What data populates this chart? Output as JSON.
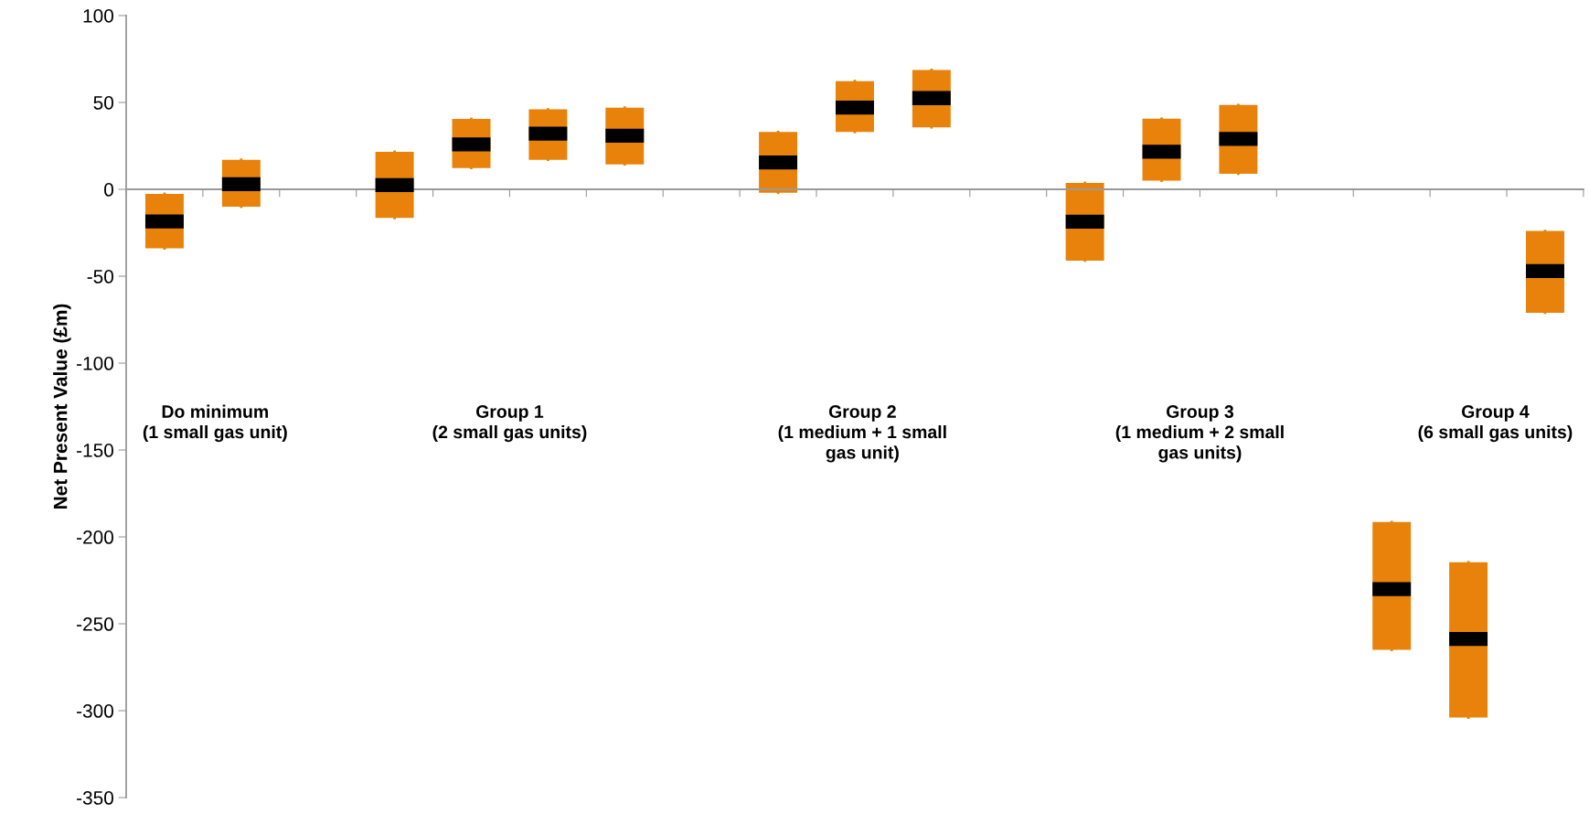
{
  "chart_data": {
    "type": "box",
    "ylabel": "Net Present Value (£m)",
    "categories": [
      null,
      null,
      null,
      null,
      null,
      null,
      null,
      null,
      null,
      null,
      null,
      null,
      null,
      null,
      null,
      null,
      null,
      null,
      null
    ],
    "series": [
      {
        "color": "#e8820a",
        "boxes": [
          {
            "low": -34,
            "q1": -34,
            "median": -18.5,
            "q3": -2.6,
            "high": -2.6
          },
          {
            "low": -10,
            "q1": -10,
            "median": 3,
            "q3": 17,
            "high": 17
          },
          null,
          {
            "low": -16.5,
            "q1": -16.5,
            "median": 2.4,
            "q3": 21.6,
            "high": 21.6
          },
          {
            "low": 12.3,
            "q1": 12.3,
            "median": 25.8,
            "q3": 40.5,
            "high": 40.5
          },
          {
            "low": 17,
            "q1": 17,
            "median": 32,
            "q3": 46,
            "high": 46
          },
          {
            "low": 14.4,
            "q1": 14.4,
            "median": 30.8,
            "q3": 47,
            "high": 47
          },
          null,
          {
            "low": -2,
            "q1": -2,
            "median": 15.5,
            "q3": 33,
            "high": 33
          },
          {
            "low": 33,
            "q1": 33,
            "median": 47,
            "q3": 62.3,
            "high": 62.3
          },
          {
            "low": 35.7,
            "q1": 35.7,
            "median": 52.5,
            "q3": 68.7,
            "high": 68.7
          },
          null,
          {
            "low": -41,
            "q1": -41,
            "median": -18.6,
            "q3": 3.7,
            "high": 3.7
          },
          {
            "low": 5,
            "q1": 5,
            "median": 21.6,
            "q3": 40.6,
            "high": 40.6
          },
          {
            "low": 9,
            "q1": 9,
            "median": 29,
            "q3": 48.5,
            "high": 48.5
          },
          null,
          {
            "low": -265,
            "q1": -265,
            "median": -230,
            "q3": -191.5,
            "high": -191.5
          },
          {
            "low": -304,
            "q1": -304,
            "median": -258.7,
            "q3": -214.6,
            "high": -214.6
          },
          {
            "low": -71,
            "q1": -71,
            "median": -47,
            "q3": -24,
            "high": -24
          }
        ]
      }
    ],
    "ylim": [
      -350,
      100
    ],
    "yticks": [
      -350,
      -300,
      -250,
      -200,
      -150,
      -100,
      -50,
      0,
      50,
      100
    ],
    "legend": false,
    "annotations": [
      "Do minimum\n(1 small gas unit)",
      "Group 1\n(2 small gas units)",
      "Group 2\n(1 medium + 1 small\ngas unit)",
      "Group 3\n(1 medium + 2 small\ngas units)",
      "Group 4\n(6 small gas units)"
    ]
  }
}
